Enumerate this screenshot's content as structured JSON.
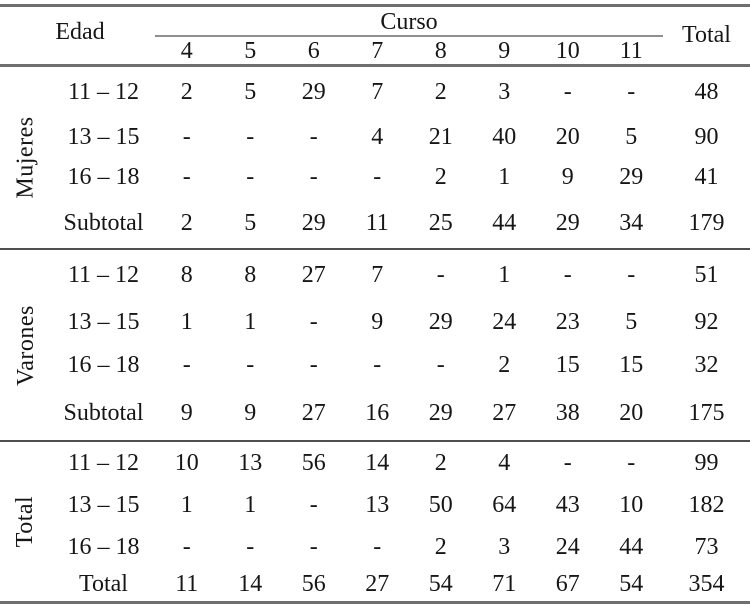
{
  "table": {
    "row_group_title": "Edad",
    "col_group_title": "Curso",
    "total_column_label": "Total",
    "curso_columns": [
      "4",
      "5",
      "6",
      "7",
      "8",
      "9",
      "10",
      "11"
    ],
    "sections": [
      {
        "group": "Mujeres",
        "rows": [
          {
            "label": "11 – 12",
            "values": [
              "2",
              "5",
              "29",
              "7",
              "2",
              "3",
              "-",
              "-"
            ],
            "total": "48"
          },
          {
            "label": "13 – 15",
            "values": [
              "-",
              "-",
              "-",
              "4",
              "21",
              "40",
              "20",
              "5"
            ],
            "total": "90"
          },
          {
            "label": "16 – 18",
            "values": [
              "-",
              "-",
              "-",
              "-",
              "2",
              "1",
              "9",
              "29"
            ],
            "total": "41"
          },
          {
            "label": "Subtotal",
            "values": [
              "2",
              "5",
              "29",
              "11",
              "25",
              "44",
              "29",
              "34"
            ],
            "total": "179"
          }
        ]
      },
      {
        "group": "Varones",
        "rows": [
          {
            "label": "11 – 12",
            "values": [
              "8",
              "8",
              "27",
              "7",
              "-",
              "1",
              "-",
              "-"
            ],
            "total": "51"
          },
          {
            "label": "13 – 15",
            "values": [
              "1",
              "1",
              "-",
              "9",
              "29",
              "24",
              "23",
              "5"
            ],
            "total": "92"
          },
          {
            "label": "16 – 18",
            "values": [
              "-",
              "-",
              "-",
              "-",
              "-",
              "2",
              "15",
              "15"
            ],
            "total": "32"
          },
          {
            "label": "Subtotal",
            "values": [
              "9",
              "9",
              "27",
              "16",
              "29",
              "27",
              "38",
              "20"
            ],
            "total": "175"
          }
        ]
      },
      {
        "group": "Total",
        "rows": [
          {
            "label": "11 – 12",
            "values": [
              "10",
              "13",
              "56",
              "14",
              "2",
              "4",
              "-",
              "-"
            ],
            "total": "99"
          },
          {
            "label": "13 – 15",
            "values": [
              "1",
              "1",
              "-",
              "13",
              "50",
              "64",
              "43",
              "10"
            ],
            "total": "182"
          },
          {
            "label": "16 – 18",
            "values": [
              "-",
              "-",
              "-",
              "-",
              "2",
              "3",
              "24",
              "44"
            ],
            "total": "73"
          },
          {
            "label": "Total",
            "values": [
              "11",
              "14",
              "56",
              "27",
              "54",
              "71",
              "67",
              "54"
            ],
            "total": "354"
          }
        ]
      }
    ]
  },
  "colors": {
    "background": "#ffffff",
    "text": "#161616",
    "rule_thick": "#6f6f6f",
    "rule_divider": "#4f4f4f",
    "rule_thin": "#8f8f8f"
  }
}
